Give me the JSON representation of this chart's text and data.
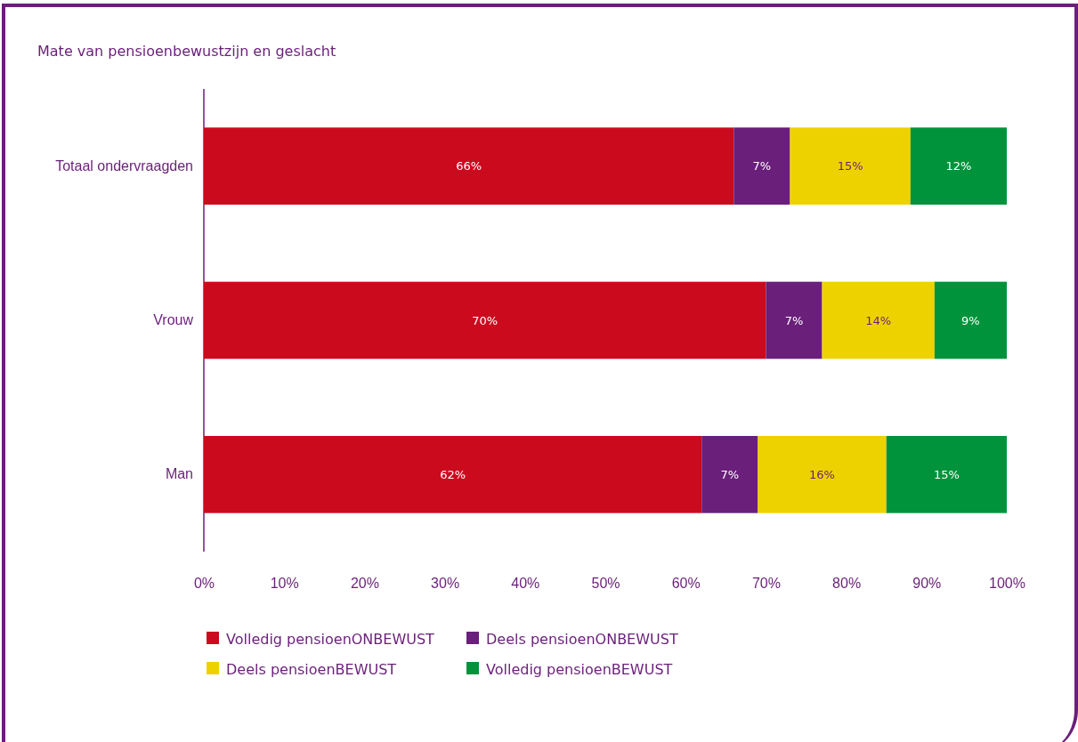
{
  "chart_data": {
    "type": "bar",
    "orientation": "horizontal",
    "stacked": true,
    "title": "Mate van pensioenbewustzijn en geslacht",
    "categories": [
      "Totaal ondervraagden",
      "Vrouw",
      "Man"
    ],
    "series": [
      {
        "name": "Volledig pensioenONBEWUST",
        "color": "#cc0a1e",
        "values": [
          66,
          70,
          62
        ],
        "value_labels": [
          "66%",
          "70%",
          "62%"
        ]
      },
      {
        "name": "Deels pensioenONBEWUST",
        "color": "#6a1f7a",
        "values": [
          7,
          7,
          7
        ],
        "value_labels": [
          "7%",
          "7%",
          "7%"
        ]
      },
      {
        "name": "Deels pensioenBEWUST",
        "color": "#eed200",
        "values": [
          15,
          14,
          16
        ],
        "value_labels": [
          "15%",
          "14%",
          "16%"
        ]
      },
      {
        "name": "Volledig pensioenBEWUST",
        "color": "#00933b",
        "values": [
          12,
          9,
          15
        ],
        "value_labels": [
          "12%",
          "9%",
          "15%"
        ]
      }
    ],
    "xlim": [
      0,
      100
    ],
    "xticks": [
      {
        "value": 0,
        "label": "0%"
      },
      {
        "value": 10,
        "label": "10%"
      },
      {
        "value": 20,
        "label": "20%"
      },
      {
        "value": 30,
        "label": "30%"
      },
      {
        "value": 40,
        "label": "40%"
      },
      {
        "value": 50,
        "label": "50%"
      },
      {
        "value": 60,
        "label": "60%"
      },
      {
        "value": 70,
        "label": "70%"
      },
      {
        "value": 80,
        "label": "80%"
      },
      {
        "value": 90,
        "label": "90%"
      },
      {
        "value": 100,
        "label": "100%"
      }
    ],
    "grid": false,
    "legend": "bottom"
  }
}
